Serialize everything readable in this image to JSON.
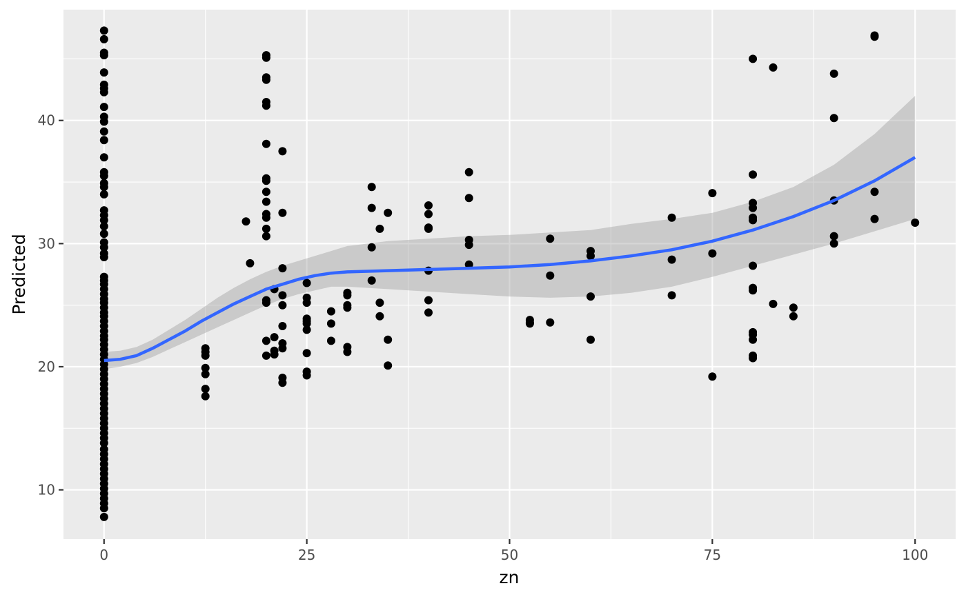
{
  "chart_data": {
    "type": "scatter",
    "xlabel": "zn",
    "ylabel": "Predicted",
    "xlim": [
      -5,
      105
    ],
    "ylim": [
      6,
      49
    ],
    "x_ticks": [
      0,
      25,
      50,
      75,
      100
    ],
    "x_tick_labels": [
      "0",
      "25",
      "50",
      "75",
      "100"
    ],
    "y_ticks": [
      10,
      20,
      30,
      40
    ],
    "y_tick_labels": [
      "10",
      "20",
      "30",
      "40"
    ],
    "grid": true,
    "legend": "none",
    "colors": {
      "panel": "#ebebeb",
      "grid": "#ffffff",
      "point": "#000000",
      "smooth_line": "#3366ff",
      "confidence_band": "#999999"
    },
    "points": [
      [
        0,
        47.3
      ],
      [
        0,
        46.6
      ],
      [
        0,
        45.5
      ],
      [
        0,
        45.3
      ],
      [
        0,
        43.9
      ],
      [
        0,
        42.9
      ],
      [
        0,
        42.6
      ],
      [
        0,
        42.3
      ],
      [
        0,
        41.1
      ],
      [
        0,
        40.3
      ],
      [
        0,
        39.9
      ],
      [
        0,
        39.1
      ],
      [
        0,
        38.4
      ],
      [
        0,
        37.0
      ],
      [
        0,
        35.8
      ],
      [
        0,
        35.5
      ],
      [
        0,
        34.9
      ],
      [
        0,
        34.6
      ],
      [
        0,
        34.0
      ],
      [
        0,
        32.7
      ],
      [
        0,
        32.3
      ],
      [
        0,
        31.9
      ],
      [
        0,
        31.4
      ],
      [
        0,
        30.8
      ],
      [
        0,
        30.1
      ],
      [
        0,
        29.7
      ],
      [
        0,
        29.2
      ],
      [
        0,
        28.9
      ],
      [
        0,
        27.3
      ],
      [
        0,
        27.0
      ],
      [
        0,
        26.7
      ],
      [
        0,
        26.3
      ],
      [
        0,
        25.9
      ],
      [
        0,
        25.5
      ],
      [
        0,
        25.2
      ],
      [
        0,
        24.8
      ],
      [
        0,
        24.4
      ],
      [
        0,
        24.1
      ],
      [
        0,
        23.7
      ],
      [
        0,
        23.3
      ],
      [
        0,
        22.9
      ],
      [
        0,
        22.5
      ],
      [
        0,
        22.2
      ],
      [
        0,
        21.8
      ],
      [
        0,
        21.4
      ],
      [
        0,
        21.0
      ],
      [
        0,
        20.6
      ],
      [
        0,
        20.2
      ],
      [
        0,
        19.8
      ],
      [
        0,
        19.4
      ],
      [
        0,
        19.0
      ],
      [
        0,
        18.6
      ],
      [
        0,
        18.2
      ],
      [
        0,
        17.8
      ],
      [
        0,
        17.4
      ],
      [
        0,
        17.0
      ],
      [
        0,
        16.6
      ],
      [
        0,
        16.2
      ],
      [
        0,
        15.8
      ],
      [
        0,
        15.4
      ],
      [
        0,
        15.0
      ],
      [
        0,
        14.6
      ],
      [
        0,
        14.2
      ],
      [
        0,
        13.8
      ],
      [
        0,
        13.3
      ],
      [
        0,
        12.9
      ],
      [
        0,
        12.5
      ],
      [
        0,
        12.1
      ],
      [
        0,
        11.7
      ],
      [
        0,
        11.3
      ],
      [
        0,
        10.9
      ],
      [
        0,
        10.5
      ],
      [
        0,
        10.1
      ],
      [
        0,
        9.7
      ],
      [
        0,
        9.3
      ],
      [
        0,
        8.9
      ],
      [
        0,
        8.5
      ],
      [
        0,
        7.8
      ],
      [
        12.5,
        21.5
      ],
      [
        12.5,
        21.2
      ],
      [
        12.5,
        20.9
      ],
      [
        12.5,
        19.9
      ],
      [
        12.5,
        19.4
      ],
      [
        12.5,
        18.2
      ],
      [
        12.5,
        17.6
      ],
      [
        17.5,
        31.8
      ],
      [
        18,
        28.4
      ],
      [
        20,
        45.3
      ],
      [
        20,
        45.1
      ],
      [
        20,
        43.5
      ],
      [
        20,
        43.3
      ],
      [
        20,
        41.5
      ],
      [
        20,
        41.2
      ],
      [
        20,
        38.1
      ],
      [
        20,
        35.3
      ],
      [
        20,
        35.1
      ],
      [
        20,
        34.2
      ],
      [
        20,
        33.4
      ],
      [
        20,
        32.4
      ],
      [
        20,
        32.1
      ],
      [
        20,
        31.2
      ],
      [
        20,
        30.6
      ],
      [
        20,
        25.4
      ],
      [
        20,
        25.2
      ],
      [
        20,
        22.1
      ],
      [
        20,
        20.9
      ],
      [
        21,
        26.3
      ],
      [
        21,
        22.4
      ],
      [
        21,
        21.3
      ],
      [
        21,
        21.0
      ],
      [
        22,
        37.5
      ],
      [
        22,
        32.5
      ],
      [
        22,
        28.0
      ],
      [
        22,
        25.8
      ],
      [
        22,
        25.0
      ],
      [
        22,
        23.3
      ],
      [
        22,
        21.9
      ],
      [
        22,
        21.5
      ],
      [
        22,
        19.1
      ],
      [
        22,
        18.7
      ],
      [
        25,
        26.8
      ],
      [
        25,
        25.6
      ],
      [
        25,
        25.2
      ],
      [
        25,
        23.9
      ],
      [
        25,
        23.7
      ],
      [
        25,
        23.5
      ],
      [
        25,
        23.0
      ],
      [
        25,
        21.1
      ],
      [
        25,
        19.6
      ],
      [
        25,
        19.3
      ],
      [
        28,
        24.5
      ],
      [
        28,
        23.5
      ],
      [
        28,
        22.1
      ],
      [
        30,
        26.0
      ],
      [
        30,
        25.8
      ],
      [
        30,
        25.0
      ],
      [
        30,
        24.8
      ],
      [
        30,
        21.6
      ],
      [
        30,
        21.2
      ],
      [
        33,
        34.6
      ],
      [
        33,
        32.9
      ],
      [
        33,
        29.7
      ],
      [
        33,
        27.0
      ],
      [
        34,
        31.2
      ],
      [
        34,
        25.2
      ],
      [
        34,
        24.1
      ],
      [
        35,
        32.5
      ],
      [
        35,
        22.2
      ],
      [
        35,
        20.1
      ],
      [
        40,
        33.1
      ],
      [
        40,
        32.4
      ],
      [
        40,
        31.3
      ],
      [
        40,
        31.2
      ],
      [
        40,
        27.8
      ],
      [
        40,
        25.4
      ],
      [
        40,
        24.4
      ],
      [
        45,
        35.8
      ],
      [
        45,
        33.7
      ],
      [
        45,
        30.3
      ],
      [
        45,
        29.9
      ],
      [
        45,
        28.3
      ],
      [
        52.5,
        23.8
      ],
      [
        52.5,
        23.6
      ],
      [
        52.5,
        23.5
      ],
      [
        55,
        30.4
      ],
      [
        55,
        27.4
      ],
      [
        55,
        23.6
      ],
      [
        60,
        29.4
      ],
      [
        60,
        29.0
      ],
      [
        60,
        25.7
      ],
      [
        60,
        22.2
      ],
      [
        70,
        32.1
      ],
      [
        70,
        28.7
      ],
      [
        70,
        25.8
      ],
      [
        75,
        34.1
      ],
      [
        75,
        29.2
      ],
      [
        75,
        19.2
      ],
      [
        80,
        45.0
      ],
      [
        80,
        35.6
      ],
      [
        80,
        33.3
      ],
      [
        80,
        32.9
      ],
      [
        80,
        32.1
      ],
      [
        80,
        31.9
      ],
      [
        80,
        28.2
      ],
      [
        80,
        26.4
      ],
      [
        80,
        26.2
      ],
      [
        80,
        22.8
      ],
      [
        80,
        22.6
      ],
      [
        80,
        22.2
      ],
      [
        80,
        20.9
      ],
      [
        80,
        20.7
      ],
      [
        82.5,
        44.3
      ],
      [
        82.5,
        25.1
      ],
      [
        85,
        24.8
      ],
      [
        85,
        24.1
      ],
      [
        90,
        43.8
      ],
      [
        90,
        40.2
      ],
      [
        90,
        33.5
      ],
      [
        90,
        30.6
      ],
      [
        90,
        30.0
      ],
      [
        95,
        46.9
      ],
      [
        95,
        46.8
      ],
      [
        95,
        34.2
      ],
      [
        95,
        32.0
      ],
      [
        100,
        31.7
      ]
    ],
    "smooth_fit": {
      "x": [
        0,
        2,
        4,
        6,
        8,
        10,
        12,
        14,
        16,
        18,
        20,
        22,
        24,
        26,
        28,
        30,
        35,
        40,
        45,
        50,
        55,
        60,
        65,
        70,
        75,
        80,
        85,
        90,
        95,
        100
      ],
      "y": [
        20.5,
        20.6,
        20.9,
        21.5,
        22.2,
        22.9,
        23.7,
        24.4,
        25.1,
        25.7,
        26.3,
        26.7,
        27.1,
        27.4,
        27.6,
        27.7,
        27.8,
        27.9,
        28.0,
        28.1,
        28.3,
        28.6,
        29.0,
        29.5,
        30.2,
        31.1,
        32.2,
        33.5,
        35.1,
        37.0
      ],
      "lower": [
        19.8,
        20.0,
        20.3,
        20.8,
        21.4,
        22.0,
        22.6,
        23.2,
        23.8,
        24.4,
        25.0,
        25.5,
        25.9,
        26.2,
        26.5,
        26.5,
        26.3,
        26.1,
        25.9,
        25.7,
        25.6,
        25.7,
        26.0,
        26.5,
        27.3,
        28.2,
        29.1,
        30.0,
        31.0,
        32.0
      ],
      "upper": [
        21.2,
        21.3,
        21.6,
        22.2,
        23.0,
        23.8,
        24.7,
        25.6,
        26.4,
        27.1,
        27.7,
        28.2,
        28.6,
        29.0,
        29.4,
        29.8,
        30.2,
        30.4,
        30.6,
        30.7,
        30.9,
        31.1,
        31.6,
        32.0,
        32.5,
        33.4,
        34.6,
        36.4,
        38.9,
        42.0
      ]
    }
  }
}
